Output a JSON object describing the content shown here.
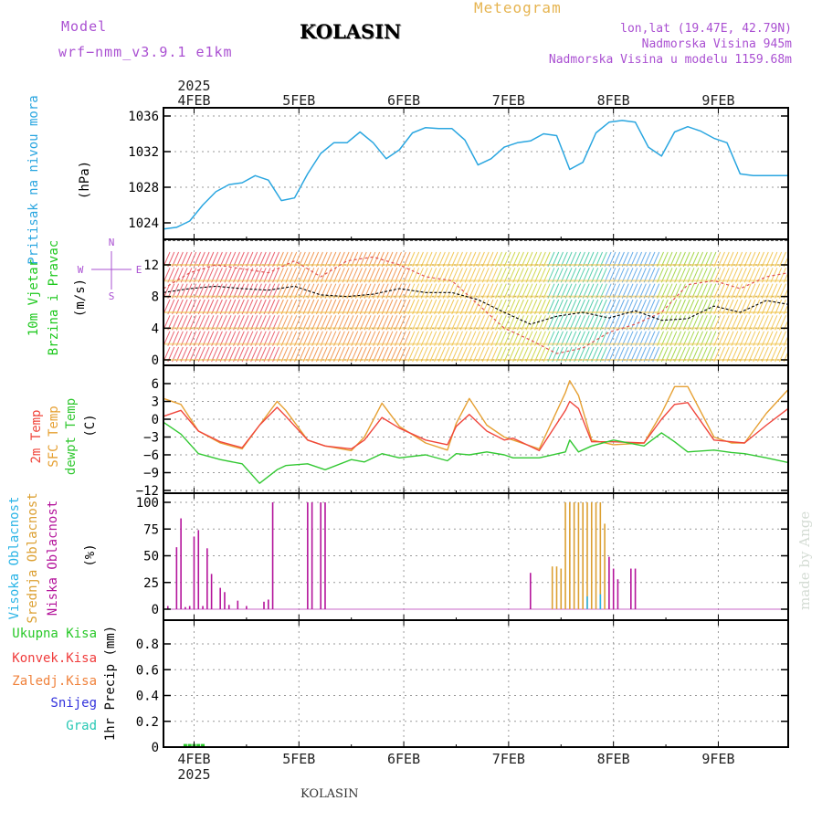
{
  "header": {
    "model_label": "Model",
    "model_name": "wrf−nmm_v3.9.1 e1km",
    "station": "KOLASIN",
    "product": "Meteogram",
    "lonlat": "lon,lat (19.47E, 42.79N)",
    "elevation": "Nadmorska Visina 945m",
    "model_elevation": "Nadmorska Visina u modelu 1159.68m",
    "footer_station": "KOLASIN",
    "watermark": "made by Angel"
  },
  "colors": {
    "pressure": "#2aa6e0",
    "wind_label": "#1ec81e",
    "temp2m": "#f0463c",
    "sfc": "#e6a032",
    "dew": "#32c832",
    "high_cloud": "#2ab4e6",
    "mid_cloud": "#dca032",
    "low_cloud": "#b4149b",
    "rain_total": "#28c828",
    "rain_conv": "#f03c3c",
    "rain_frz": "#f0823c",
    "snow": "#3232dc",
    "hail": "#28c8b4",
    "purple_text": "#aa50d2",
    "orange_text": "#e6b450"
  },
  "time_axis": {
    "year": "2025",
    "dates": [
      "4FEB",
      "5FEB",
      "6FEB",
      "7FEB",
      "8FEB",
      "9FEB"
    ],
    "start_hours_before_first_date": 7,
    "total_hours": 143
  },
  "chart_data": [
    {
      "type": "line",
      "panel": "pressure",
      "ylabel": "(hPa)",
      "side_label": "Pritisak na nivou mora",
      "ylim": [
        1022,
        1037
      ],
      "yticks": [
        1024,
        1028,
        1032,
        1036
      ],
      "ytick_labels": [
        "1024",
        "1028",
        "1032",
        "1036"
      ],
      "grid": true,
      "series": [
        {
          "hours": [
            0,
            3,
            6,
            9,
            12,
            15,
            18,
            21,
            24,
            27,
            30,
            33,
            36,
            39,
            42,
            45,
            48,
            51,
            54,
            57,
            60,
            63,
            66,
            69,
            72,
            75,
            78,
            81,
            84,
            87,
            90,
            93,
            96,
            99,
            102,
            105,
            108,
            111,
            114,
            117,
            120,
            123,
            126,
            129,
            132,
            135,
            138,
            141,
            143
          ],
          "values": [
            1023.3,
            1023.5,
            1024.2,
            1026.0,
            1027.5,
            1028.3,
            1028.5,
            1029.3,
            1028.8,
            1026.5,
            1026.8,
            1029.5,
            1031.8,
            1033.0,
            1033.0,
            1034.2,
            1033.0,
            1031.2,
            1032.2,
            1034.1,
            1034.7,
            1034.6,
            1034.6,
            1033.3,
            1030.5,
            1031.2,
            1032.5,
            1033.0,
            1033.2,
            1034.0,
            1033.8,
            1030.0,
            1030.8,
            1034.1,
            1035.3,
            1035.5,
            1035.3,
            1032.5,
            1031.5,
            1034.2,
            1034.8,
            1034.3,
            1033.5,
            1033.0,
            1029.5,
            1029.3,
            1029.3,
            1029.3,
            1029.3
          ]
        }
      ]
    },
    {
      "type": "line",
      "panel": "wind",
      "ylabel": "(m/s)",
      "side_labels": [
        "10m Vjetar",
        "Brzina i Pravac"
      ],
      "compass": [
        "N",
        "E",
        "W",
        "S"
      ],
      "ylim": [
        -1,
        13
      ],
      "yticks": [
        0,
        4,
        8,
        12
      ],
      "ytick_labels": [
        "0",
        "4",
        "8",
        "12"
      ],
      "grid": true,
      "series": [
        {
          "name": "speed",
          "hours": [
            0,
            6,
            12,
            18,
            24,
            30,
            36,
            42,
            48,
            54,
            60,
            66,
            72,
            78,
            84,
            90,
            96,
            102,
            108,
            114,
            120,
            126,
            132,
            138,
            143
          ],
          "values": [
            8.5,
            9.0,
            9.3,
            9.0,
            8.8,
            9.3,
            8.2,
            8.0,
            8.3,
            9.0,
            8.5,
            8.5,
            7.6,
            6.0,
            4.5,
            5.5,
            6.0,
            5.3,
            6.2,
            5.0,
            5.2,
            6.8,
            6.0,
            7.5,
            7.0
          ]
        },
        {
          "name": "gust",
          "hours": [
            0,
            6,
            12,
            18,
            24,
            30,
            36,
            42,
            48,
            54,
            60,
            66,
            72,
            78,
            84,
            90,
            96,
            102,
            108,
            114,
            120,
            126,
            132,
            138,
            143
          ],
          "values": [
            9,
            11,
            12,
            11.5,
            11,
            12.5,
            10.5,
            12.5,
            13,
            12,
            10.5,
            10.0,
            7.0,
            4.0,
            2.5,
            0.8,
            1.5,
            3.5,
            4.5,
            6.0,
            9.5,
            10.0,
            9.0,
            10.5,
            11
          ]
        }
      ]
    },
    {
      "type": "line",
      "panel": "temperature",
      "ylabel": "(C)",
      "ylim": [
        -12,
        7
      ],
      "yticks": [
        -12,
        -9,
        -6,
        -3,
        0,
        3,
        6
      ],
      "ytick_labels": [
        "−12",
        "−9",
        "−6",
        "−3",
        "0",
        "3",
        "6"
      ],
      "grid": true,
      "series": [
        {
          "name": "2m Temp",
          "hours": [
            0,
            4,
            8,
            13,
            18,
            22,
            26,
            28,
            33,
            37,
            43,
            46,
            50,
            54,
            60,
            65,
            67,
            70,
            74,
            78,
            80,
            86,
            92,
            93,
            95,
            98,
            103,
            110,
            114,
            117,
            120,
            126,
            130,
            133,
            138,
            143
          ],
          "values": [
            0.5,
            1.5,
            -2,
            -3.8,
            -4.8,
            -1,
            2,
            0.5,
            -3.5,
            -4.5,
            -5,
            -3.5,
            0.3,
            -1.5,
            -3.5,
            -4.3,
            -1.2,
            0.8,
            -2,
            -3.5,
            -3.2,
            -5.3,
            1.5,
            3,
            1.8,
            -3.8,
            -3.8,
            -4,
            0,
            2.5,
            2.8,
            -3.5,
            -3.8,
            -4,
            -1,
            1.8
          ]
        },
        {
          "name": "SFC Temp",
          "hours": [
            0,
            4,
            8,
            13,
            18,
            22,
            26,
            28,
            33,
            37,
            43,
            46,
            50,
            54,
            60,
            65,
            67,
            70,
            74,
            78,
            80,
            86,
            92,
            93,
            95,
            98,
            103,
            110,
            114,
            117,
            120,
            126,
            130,
            133,
            138,
            143
          ],
          "values": [
            3.5,
            2.5,
            -2,
            -4,
            -5,
            -1,
            3,
            1.5,
            -3.5,
            -4.5,
            -5.3,
            -3,
            2.7,
            -1.2,
            -4,
            -5.2,
            -0.7,
            3.5,
            -1,
            -3,
            -3.5,
            -5,
            4.5,
            6.5,
            4,
            -3.5,
            -4.3,
            -4,
            1,
            5.5,
            5.5,
            -3,
            -4,
            -4,
            1,
            5
          ]
        },
        {
          "name": "dewpt Temp",
          "hours": [
            0,
            4,
            8,
            13,
            18,
            22,
            26,
            28,
            33,
            37,
            43,
            46,
            50,
            54,
            60,
            65,
            67,
            70,
            74,
            78,
            80,
            86,
            92,
            93,
            95,
            98,
            103,
            110,
            114,
            117,
            120,
            126,
            130,
            133,
            138,
            143
          ],
          "values": [
            -0.5,
            -2.5,
            -5.8,
            -6.8,
            -7.5,
            -10.8,
            -8.5,
            -7.8,
            -7.5,
            -8.5,
            -6.8,
            -7.2,
            -5.8,
            -6.5,
            -6,
            -7,
            -5.8,
            -6,
            -5.5,
            -6,
            -6.5,
            -6.5,
            -5.5,
            -3.5,
            -5.5,
            -4.5,
            -3.5,
            -4.5,
            -2.3,
            -3.8,
            -5.5,
            -5.2,
            -5.6,
            -5.8,
            -6.5,
            -7.3
          ]
        }
      ]
    },
    {
      "type": "bar",
      "panel": "cloud",
      "ylabel": "(%)",
      "side_labels": [
        "Visoka Oblacnost",
        "Srednja Oblacnost",
        "Niska Oblacnost"
      ],
      "ylim": [
        0,
        100
      ],
      "yticks": [
        0,
        25,
        50,
        75,
        100
      ],
      "ytick_labels": [
        "0",
        "25",
        "50",
        "75",
        "100"
      ],
      "grid": true,
      "series": [
        {
          "name": "Niska Oblacnost",
          "hours": [
            1,
            3,
            4,
            5,
            6,
            7,
            8,
            9,
            10,
            11,
            13,
            14,
            15,
            17,
            19,
            23,
            24,
            25,
            33,
            34,
            36,
            37
          ],
          "values": [
            3,
            58,
            85,
            2,
            3,
            68,
            74,
            3,
            57,
            33,
            20,
            16,
            4,
            8,
            3,
            7,
            9,
            100,
            100,
            100,
            100,
            100
          ]
        },
        {
          "name": "Srednja Oblacnost",
          "hours": [
            89,
            90,
            91,
            92,
            93,
            94,
            95,
            96,
            97,
            98,
            99,
            100,
            101
          ],
          "values": [
            40,
            40,
            38,
            100,
            100,
            100,
            100,
            100,
            100,
            100,
            100,
            100,
            80
          ]
        },
        {
          "name": "Niska Oblacnost",
          "hours": [
            84,
            102,
            103,
            104,
            107,
            108
          ],
          "values": [
            34,
            49,
            38,
            28,
            38,
            38
          ]
        },
        {
          "name": "Visoka Oblacnost",
          "hours": [
            97,
            100
          ],
          "values": [
            12,
            14
          ]
        }
      ]
    },
    {
      "type": "bar",
      "panel": "precipitation",
      "ylabel": "1hr Precip (mm)",
      "legend": [
        "Ukupna Kisa",
        "Konvek.Kisa",
        "Zaledj.Kisa",
        "Snijeg",
        "Grad"
      ],
      "ylim": [
        0,
        1.0
      ],
      "yticks": [
        0,
        0.2,
        0.4,
        0.6,
        0.8
      ],
      "ytick_labels": [
        "0",
        "0.2",
        "0.4",
        "0.6",
        "0.8"
      ],
      "grid": true,
      "series": [
        {
          "name": "Ukupna Kisa",
          "hours": [
            5,
            6,
            7,
            8,
            9
          ],
          "values": [
            0.01,
            0.01,
            0.01,
            0.01,
            0.01
          ]
        }
      ]
    }
  ]
}
